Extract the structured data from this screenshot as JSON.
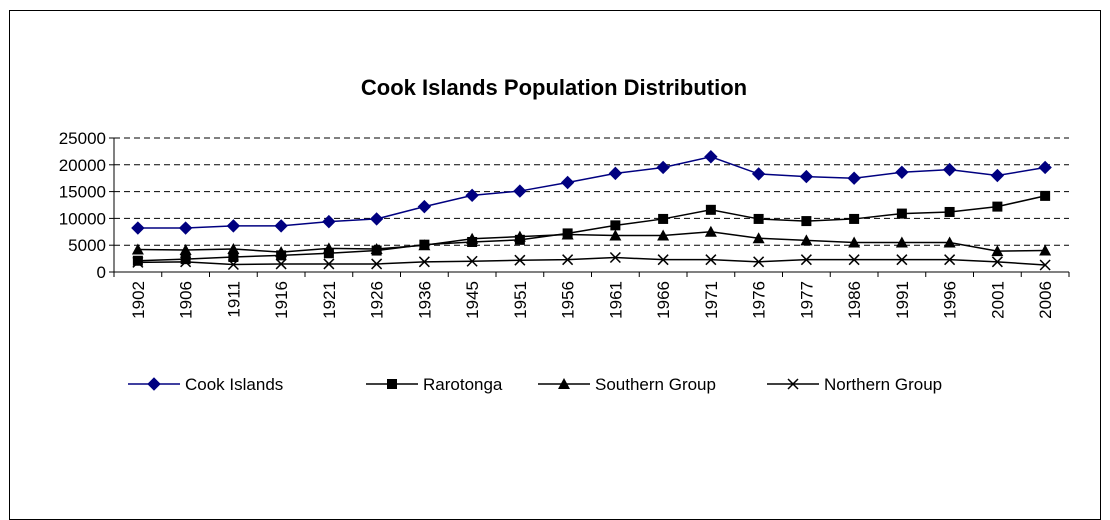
{
  "chart_data": {
    "type": "line",
    "title": "Cook Islands Population Distribution",
    "xlabel": "",
    "ylabel": "",
    "categories": [
      "1902",
      "1906",
      "1911",
      "1916",
      "1921",
      "1926",
      "1936",
      "1945",
      "1951",
      "1956",
      "1961",
      "1966",
      "1971",
      "1976",
      "1977",
      "1986",
      "1991",
      "1996",
      "2001",
      "2006"
    ],
    "y_ticks": [
      "0",
      "5000",
      "10000",
      "15000",
      "20000",
      "25000"
    ],
    "ylim": [
      0,
      25000
    ],
    "grid": true,
    "legend_position": "bottom",
    "series": [
      {
        "name": "Cook Islands",
        "marker": "diamond",
        "color": "#000080",
        "values": [
          8200,
          8200,
          8600,
          8600,
          9400,
          9900,
          12200,
          14300,
          15100,
          16700,
          18400,
          19500,
          21500,
          18300,
          17800,
          17500,
          18600,
          19100,
          18000,
          19500
        ]
      },
      {
        "name": "Rarotonga",
        "marker": "square",
        "color": "#000000",
        "values": [
          2100,
          2400,
          2800,
          3100,
          3500,
          4000,
          5100,
          5600,
          6000,
          7200,
          8700,
          9900,
          11600,
          9900,
          9500,
          9900,
          10900,
          11200,
          12200,
          14200
        ]
      },
      {
        "name": "Southern Group",
        "marker": "triangle",
        "color": "#000000",
        "values": [
          4200,
          4100,
          4300,
          3700,
          4400,
          4300,
          5000,
          6200,
          6600,
          7000,
          6800,
          6800,
          7500,
          6300,
          5900,
          5500,
          5500,
          5500,
          3900,
          4000
        ]
      },
      {
        "name": "Northern Group",
        "marker": "x",
        "color": "#000000",
        "values": [
          1800,
          1900,
          1400,
          1500,
          1500,
          1500,
          1900,
          2000,
          2200,
          2300,
          2700,
          2300,
          2300,
          1900,
          2300,
          2300,
          2300,
          2300,
          1900,
          1300
        ]
      }
    ]
  }
}
